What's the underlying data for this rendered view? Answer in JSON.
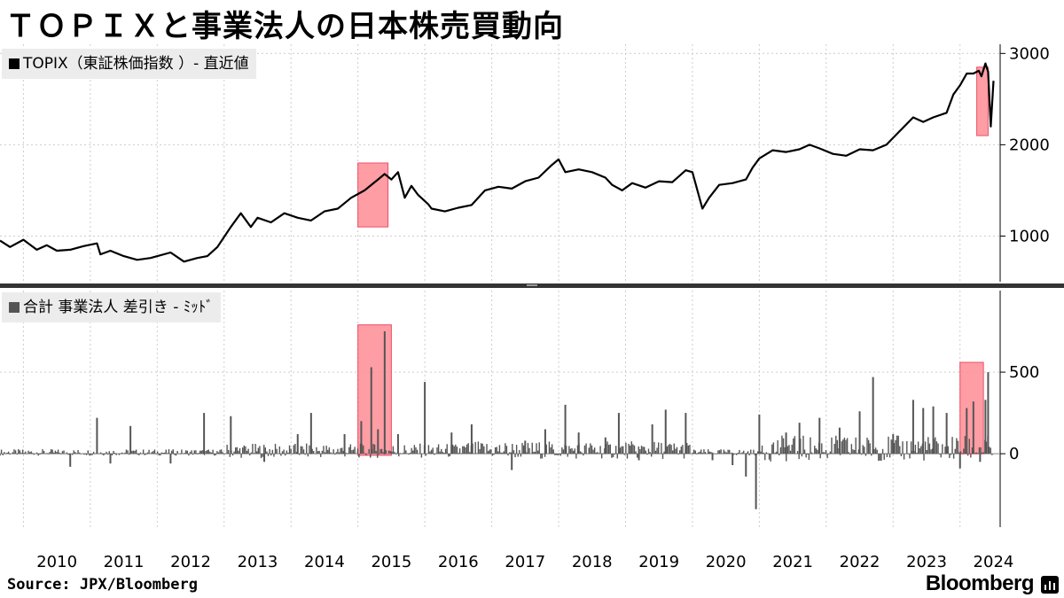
{
  "title": "ＴＯＰＩＸと事業法人の日本株売買動向",
  "source": "Source: JPX/Bloomberg",
  "brand": "Bloomberg",
  "brand_icon": "bar-chart-icon",
  "colors": {
    "line": "#000000",
    "bars": "#555555",
    "highlight_fill": "#ff8c95",
    "highlight_stroke": "#e8304a",
    "grid": "#cccccc",
    "divider": "#333333",
    "legend_bg": "#ececec"
  },
  "chart_data": [
    {
      "type": "line",
      "legend": "TOPIX（東証株価指数 ）- 直近値",
      "x_ticks": [
        "2010",
        "2011",
        "2012",
        "2013",
        "2014",
        "2015",
        "2016",
        "2017",
        "2018",
        "2019",
        "2020",
        "2021",
        "2022",
        "2023",
        "2024"
      ],
      "y_ticks": [
        1000,
        2000,
        3000
      ],
      "ylim": [
        500,
        3100
      ],
      "xlim": [
        2009.65,
        2024.6
      ],
      "grid": true,
      "series": [
        {
          "x": [
            2009.65,
            2009.8,
            2010.0,
            2010.2,
            2010.35,
            2010.5,
            2010.7,
            2010.9,
            2011.1,
            2011.15,
            2011.3,
            2011.5,
            2011.7,
            2011.9,
            2012.2,
            2012.4,
            2012.6,
            2012.75,
            2012.9,
            2013.1,
            2013.25,
            2013.4,
            2013.5,
            2013.7,
            2013.9,
            2014.1,
            2014.3,
            2014.5,
            2014.7,
            2014.9,
            2015.1,
            2015.3,
            2015.4,
            2015.5,
            2015.6,
            2015.7,
            2015.8,
            2015.9,
            2016.05,
            2016.1,
            2016.3,
            2016.5,
            2016.7,
            2016.9,
            2017.1,
            2017.3,
            2017.5,
            2017.7,
            2017.9,
            2018.0,
            2018.1,
            2018.3,
            2018.5,
            2018.7,
            2018.8,
            2018.95,
            2019.1,
            2019.3,
            2019.5,
            2019.7,
            2019.9,
            2020.0,
            2020.15,
            2020.25,
            2020.4,
            2020.6,
            2020.8,
            2020.9,
            2021.0,
            2021.2,
            2021.4,
            2021.6,
            2021.75,
            2021.9,
            2022.1,
            2022.3,
            2022.5,
            2022.7,
            2022.9,
            2023.1,
            2023.3,
            2023.45,
            2023.6,
            2023.8,
            2023.9,
            2024.0,
            2024.1,
            2024.2,
            2024.28,
            2024.32,
            2024.38,
            2024.42,
            2024.46,
            2024.5
          ],
          "y": [
            950,
            880,
            960,
            850,
            900,
            840,
            850,
            890,
            920,
            800,
            840,
            780,
            740,
            760,
            820,
            720,
            760,
            780,
            880,
            1100,
            1250,
            1100,
            1200,
            1150,
            1250,
            1200,
            1170,
            1270,
            1300,
            1420,
            1500,
            1620,
            1680,
            1620,
            1700,
            1420,
            1550,
            1450,
            1350,
            1300,
            1270,
            1310,
            1340,
            1500,
            1540,
            1520,
            1600,
            1640,
            1780,
            1840,
            1700,
            1730,
            1700,
            1640,
            1560,
            1500,
            1580,
            1530,
            1600,
            1590,
            1720,
            1700,
            1300,
            1420,
            1560,
            1580,
            1620,
            1750,
            1850,
            1940,
            1920,
            1950,
            2000,
            1960,
            1900,
            1880,
            1950,
            1940,
            2000,
            2150,
            2300,
            2250,
            2300,
            2350,
            2550,
            2650,
            2780,
            2780,
            2810,
            2750,
            2890,
            2800,
            2200,
            2700
          ]
        }
      ],
      "highlights": [
        {
          "x_range": [
            2015.0,
            2015.45
          ],
          "y_range": [
            1100,
            1800
          ]
        },
        {
          "x_range": [
            2024.25,
            2024.42
          ],
          "y_range": [
            2100,
            2850
          ]
        }
      ]
    },
    {
      "type": "bar",
      "legend": "合計 事業法人 差引き - ﾐｯﾄﾞ",
      "x_ticks": [
        "2010",
        "2011",
        "2012",
        "2013",
        "2014",
        "2015",
        "2016",
        "2017",
        "2018",
        "2019",
        "2020",
        "2021",
        "2022",
        "2023",
        "2024"
      ],
      "y_ticks": [
        0,
        500
      ],
      "ylim": [
        -450,
        1000
      ],
      "xlim": [
        2009.65,
        2024.6
      ],
      "grid": true,
      "series": [
        {
          "x": [
            2010.7,
            2011.1,
            2011.3,
            2011.6,
            2012.2,
            2012.7,
            2013.1,
            2013.6,
            2014.1,
            2014.3,
            2014.8,
            2015.05,
            2015.2,
            2015.3,
            2015.4,
            2015.6,
            2016.0,
            2016.4,
            2016.7,
            2017.3,
            2017.5,
            2017.8,
            2018.1,
            2018.3,
            2018.7,
            2018.9,
            2019.2,
            2019.4,
            2019.6,
            2019.9,
            2020.3,
            2020.6,
            2020.8,
            2020.95,
            2021.0,
            2021.4,
            2021.6,
            2021.9,
            2022.2,
            2022.5,
            2022.7,
            2023.0,
            2023.3,
            2023.45,
            2023.6,
            2023.8,
            2024.0,
            2024.1,
            2024.2,
            2024.3,
            2024.38,
            2024.42
          ],
          "y": [
            -80,
            220,
            -60,
            170,
            -60,
            250,
            230,
            -50,
            120,
            250,
            120,
            200,
            530,
            150,
            750,
            120,
            440,
            130,
            180,
            -100,
            80,
            150,
            300,
            130,
            100,
            250,
            -40,
            180,
            270,
            250,
            -40,
            -70,
            -140,
            -340,
            240,
            130,
            190,
            220,
            160,
            260,
            470,
            120,
            330,
            280,
            290,
            250,
            -90,
            280,
            320,
            -50,
            330,
            500
          ]
        }
      ],
      "highlights": [
        {
          "x_range": [
            2015.0,
            2015.5
          ],
          "y_range": [
            -10,
            790
          ]
        },
        {
          "x_range": [
            2024.0,
            2024.35
          ],
          "y_range": [
            0,
            560
          ]
        }
      ]
    }
  ]
}
